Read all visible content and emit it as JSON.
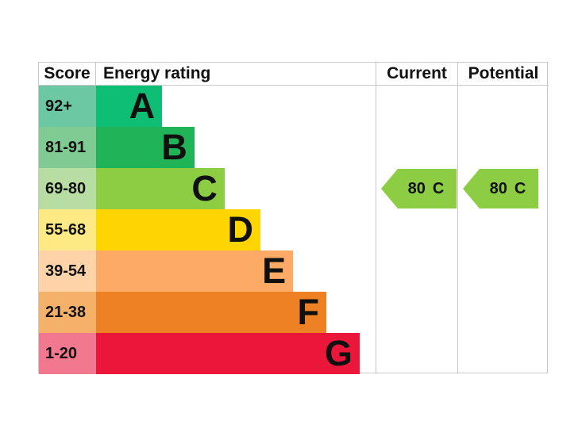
{
  "header": {
    "score": "Score",
    "energy_rating": "Energy rating",
    "current": "Current",
    "potential": "Potential"
  },
  "bands": [
    {
      "letter": "A",
      "score_range": "92+",
      "bar_color": "#0fbe75",
      "score_color": "#6bc8a2",
      "width_pct": 23.6
    },
    {
      "letter": "B",
      "score_range": "81-91",
      "bar_color": "#21b357",
      "score_color": "#80ca93",
      "width_pct": 35.2
    },
    {
      "letter": "C",
      "score_range": "69-80",
      "bar_color": "#8dcd44",
      "score_color": "#b8dda2",
      "width_pct": 46.0
    },
    {
      "letter": "D",
      "score_range": "55-68",
      "bar_color": "#ffd500",
      "score_color": "#fdea84",
      "width_pct": 58.8
    },
    {
      "letter": "E",
      "score_range": "39-54",
      "bar_color": "#fcaa65",
      "score_color": "#fdd3a7",
      "width_pct": 70.5
    },
    {
      "letter": "F",
      "score_range": "21-38",
      "bar_color": "#ee8123",
      "score_color": "#f5b169",
      "width_pct": 82.4
    },
    {
      "letter": "G",
      "score_range": "1-20",
      "bar_color": "#ea173b",
      "score_color": "#f2788f",
      "width_pct": 94.3
    }
  ],
  "current": {
    "value": "80",
    "band": "C",
    "arrow_color": "#8dcd44"
  },
  "potential": {
    "value": "80",
    "band": "C",
    "arrow_color": "#8dcd44"
  },
  "chart_data": {
    "type": "table",
    "title": "Energy rating",
    "columns": [
      "Score",
      "Energy rating",
      "Current",
      "Potential"
    ],
    "bands": [
      {
        "band": "A",
        "score": "92+"
      },
      {
        "band": "B",
        "score": "81-91"
      },
      {
        "band": "C",
        "score": "69-80"
      },
      {
        "band": "D",
        "score": "55-68"
      },
      {
        "band": "E",
        "score": "39-54"
      },
      {
        "band": "F",
        "score": "21-38"
      },
      {
        "band": "G",
        "score": "1-20"
      }
    ],
    "current": {
      "score": 80,
      "band": "C"
    },
    "potential": {
      "score": 80,
      "band": "C"
    }
  }
}
